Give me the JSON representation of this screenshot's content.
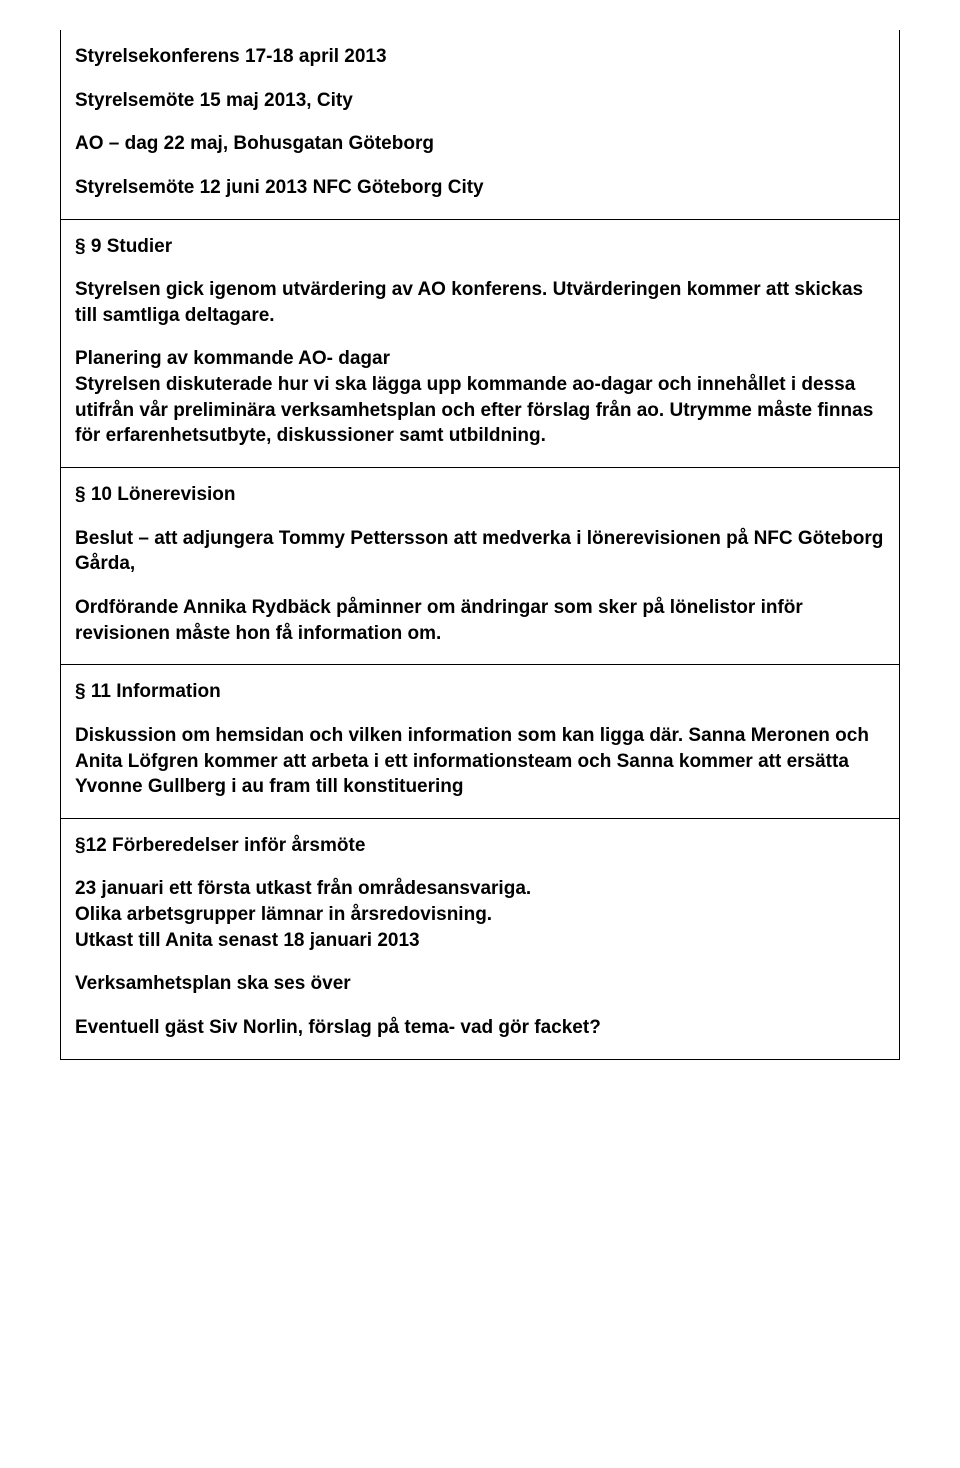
{
  "cell1": {
    "line1": "Styrelsekonferens 17-18 april 2013",
    "line2": "Styrelsemöte 15 maj 2013, City",
    "line3": "AO – dag 22 maj, Bohusgatan Göteborg",
    "line4": "Styrelsemöte 12 juni 2013 NFC Göteborg City"
  },
  "cell2": {
    "heading": "§ 9 Studier",
    "p1": "Styrelsen gick igenom utvärdering av AO konferens. Utvärderingen kommer att skickas till samtliga deltagare.",
    "p2": "Planering av kommande AO- dagar",
    "p2b": "Styrelsen diskuterade hur vi ska lägga upp kommande ao-dagar och innehållet i dessa utifrån vår preliminära verksamhetsplan och efter förslag från ao. Utrymme måste finnas för erfarenhetsutbyte, diskussioner samt utbildning."
  },
  "cell3": {
    "heading": "§ 10 Lönerevision",
    "p1": "Beslut – att adjungera Tommy Pettersson att medverka i lönerevisionen på NFC Göteborg Gårda,",
    "p2": "Ordförande Annika Rydbäck påminner om ändringar som sker på lönelistor inför revisionen måste hon få information om."
  },
  "cell4": {
    "heading": "§ 11 Information",
    "p1": "Diskussion om hemsidan och vilken information som kan ligga där. Sanna Meronen och Anita Löfgren kommer att arbeta i ett informationsteam och Sanna kommer att ersätta Yvonne Gullberg i au fram till konstituering"
  },
  "cell5": {
    "heading": "§12 Förberedelser inför årsmöte",
    "p1a": "23 januari ett första utkast från områdesansvariga.",
    "p1b": "Olika arbetsgrupper lämnar in årsredovisning.",
    "p1c": "Utkast till Anita senast 18 januari 2013",
    "p2": "Verksamhetsplan ska ses över",
    "p3": "Eventuell gäst Siv Norlin, förslag på tema- vad gör facket?"
  }
}
